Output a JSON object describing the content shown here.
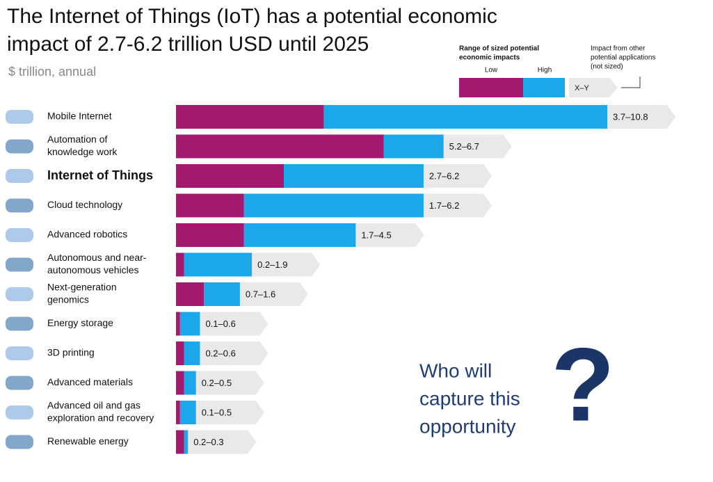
{
  "chart_data": {
    "type": "range-bar",
    "title": [
      "The Internet of Things (IoT) has a potential economic",
      "impact of 2.7-6.2 trillion USD until 2025"
    ],
    "subtitle": "$ trillion, annual",
    "categories": [
      [
        "Mobile Internet"
      ],
      [
        "Automation of",
        "knowledge work"
      ],
      [
        "Internet of Things"
      ],
      [
        "Cloud technology"
      ],
      [
        "Advanced robotics"
      ],
      [
        "Autonomous and near-",
        "autonomous vehicles"
      ],
      [
        "Next-generation",
        "genomics"
      ],
      [
        "Energy storage"
      ],
      [
        "3D printing"
      ],
      [
        "Advanced materials"
      ],
      [
        "Advanced oil and gas",
        "exploration and recovery"
      ],
      [
        "Renewable energy"
      ]
    ],
    "highlight": 2,
    "series": [
      {
        "name": "Low",
        "color": "#a3196f",
        "values": [
          3.7,
          5.2,
          2.7,
          1.7,
          1.7,
          0.2,
          0.7,
          0.1,
          0.2,
          0.2,
          0.1,
          0.2
        ]
      },
      {
        "name": "High",
        "color": "#1ba8ea",
        "values": [
          10.8,
          6.7,
          6.2,
          6.2,
          4.5,
          1.9,
          1.6,
          0.6,
          0.6,
          0.5,
          0.5,
          0.3
        ]
      }
    ],
    "value_labels": [
      "3.7–10.8",
      "5.2–6.7",
      "2.7–6.2",
      "1.7–6.2",
      "1.7–4.5",
      "0.2–1.9",
      "0.7–1.6",
      "0.1–0.6",
      "0.2–0.6",
      "0.2–0.5",
      "0.1–0.5",
      "0.2–0.3"
    ],
    "xlim": [
      0,
      10.8
    ],
    "legend": {
      "title": [
        "Range of sized potential",
        "economic impacts"
      ],
      "other": [
        "Impact from other",
        "potential applications",
        "(not sized)"
      ],
      "range_label": "X–Y"
    },
    "annotation": {
      "lines": [
        "Who will",
        "capture this",
        "opportunity"
      ],
      "mark": "?"
    }
  }
}
